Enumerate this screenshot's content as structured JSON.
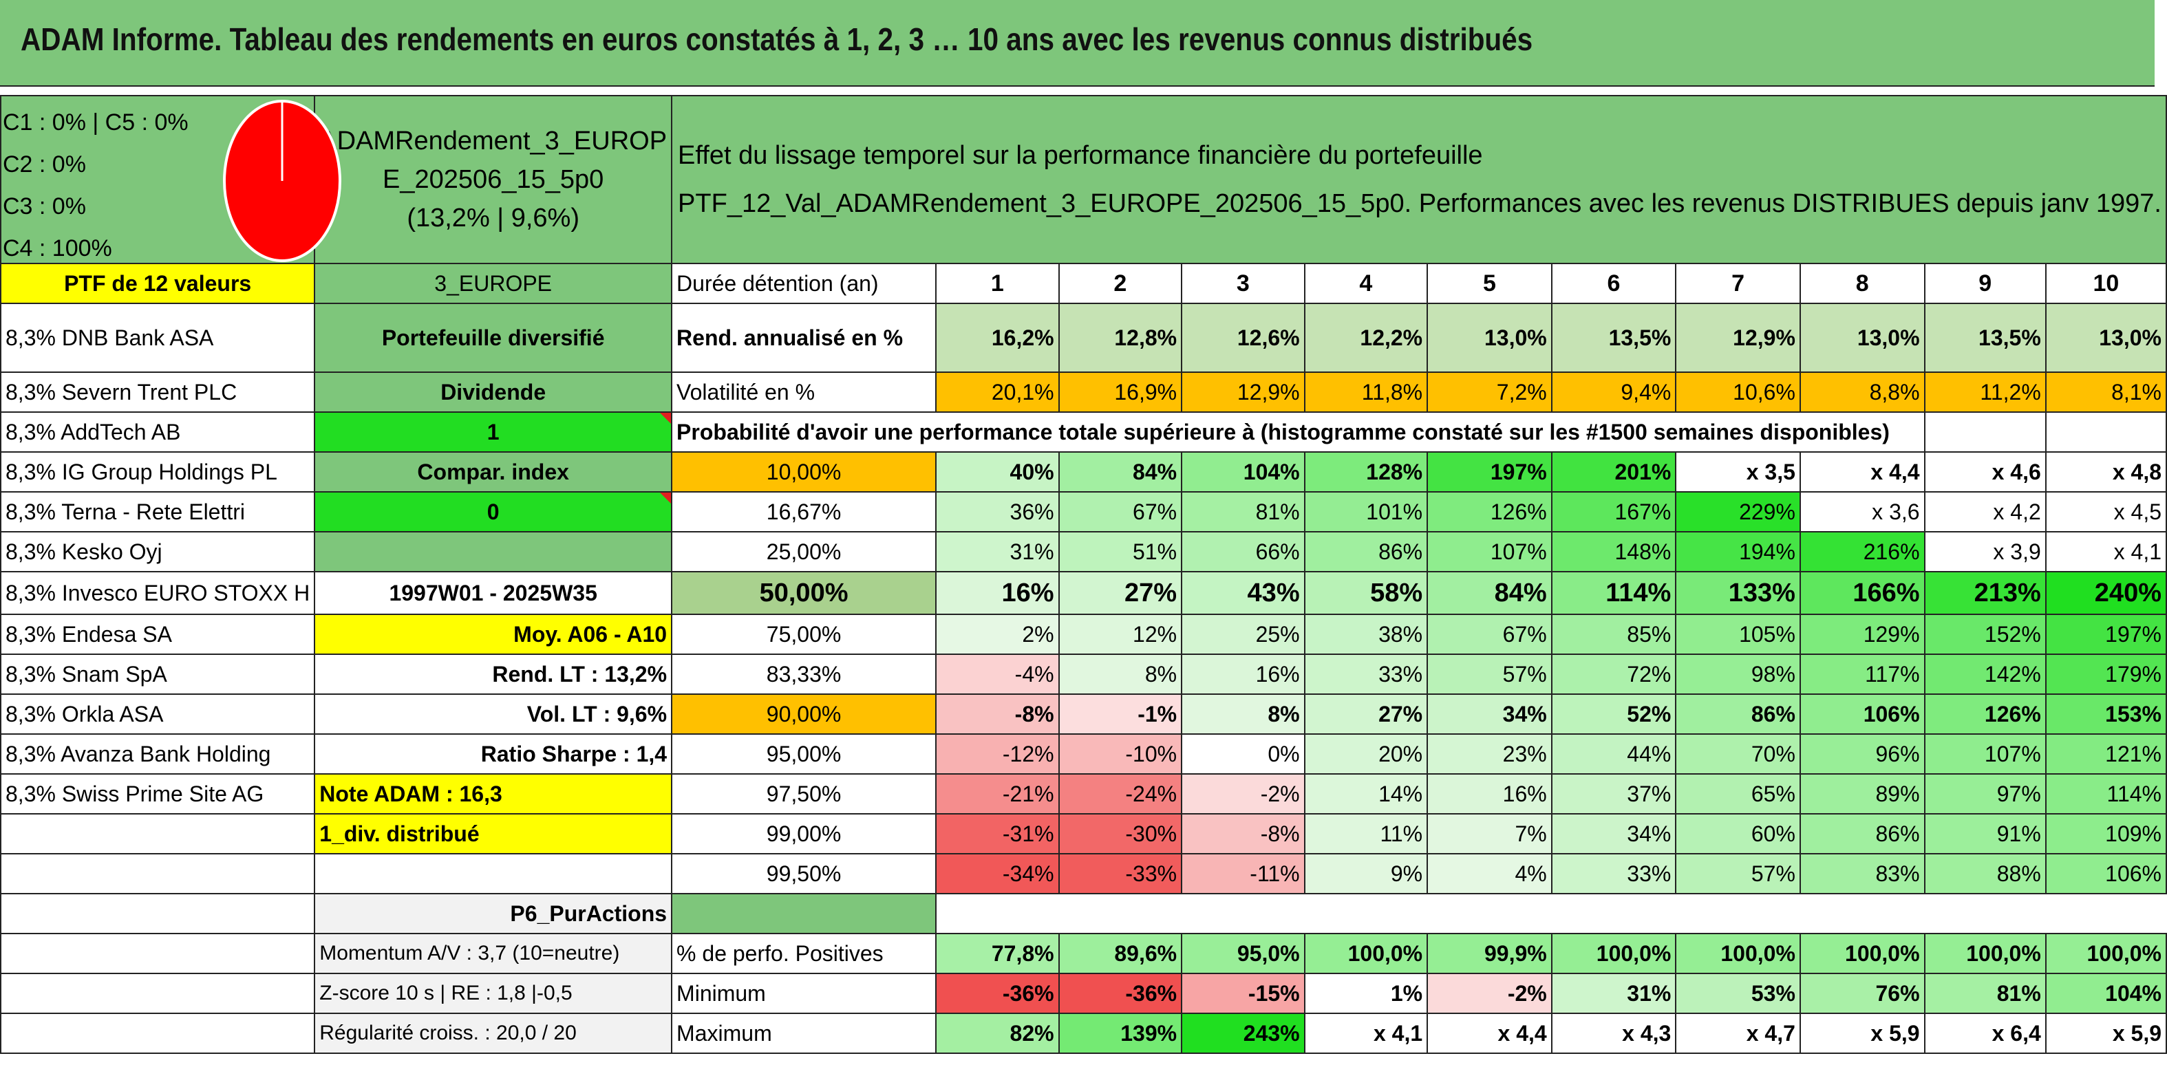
{
  "title": "ADAM Informe. Tableau des rendements en euros constatés à 1, 2, 3 … 10 ans avec les revenus connus distribués",
  "allocation": [
    "C1 : 0% | C5 : 0%",
    "C2 : 0%",
    "C3 : 0%",
    "C4 : 100%"
  ],
  "pie_color": "#ff0000",
  "portfolio_name": [
    "ADAMRendement_3_EUROP",
    "E_202506_15_5p0",
    "(13,2% | 9,6%)"
  ],
  "description": [
    "Effet du lissage temporel sur la performance financière du portefeuille",
    "PTF_12_Val_ADAMRendement_3_EUROPE_202506_15_5p0. Performances avec les revenus DISTRIBUES depuis janv 1997."
  ],
  "ptf_label": "PTF de 12 valeurs",
  "holdings": [
    "8,3% DNB Bank ASA",
    "8,3% Severn Trent PLC",
    "8,3% AddTech AB",
    "8,3% IG Group Holdings PL",
    "8,3% Terna - Rete Elettri",
    "8,3% Kesko Oyj",
    "8,3% Invesco EURO STOXX H",
    "8,3% Endesa SA",
    "8,3% Snam SpA",
    "8,3% Orkla ASA",
    "8,3% Avanza Bank Holding",
    "8,3% Swiss Prime Site AG"
  ],
  "middle": {
    "category": "3_EUROPE",
    "type": "Portefeuille diversifié",
    "dividende_label": "Dividende",
    "dividende_value": "1",
    "compar_label": "Compar. index",
    "compar_value": "0",
    "period": "1997W01 - 2025W35",
    "moy": "Moy. A06 - A10",
    "rend_lt": "Rend. LT : 13,2%",
    "vol_lt": "Vol. LT : 9,6%",
    "sharpe": "Ratio Sharpe : 1,4",
    "note": "Note ADAM : 16,3",
    "div": "1_div. distribué",
    "purActions": "P6_PurActions",
    "momentum": "Momentum A/V : 3,7 (10=neutre)",
    "zscore": "Z-score 10 s | RE : 1,8 |-0,5",
    "regularite": "Régularité croiss. : 20,0 / 20"
  },
  "table": {
    "duration_label": "Durée détention (an)",
    "years": [
      "1",
      "2",
      "3",
      "4",
      "5",
      "6",
      "7",
      "8",
      "9",
      "10"
    ],
    "rend_label": "Rend. annualisé en %",
    "rend": [
      "16,2%",
      "12,8%",
      "12,6%",
      "12,2%",
      "13,0%",
      "13,5%",
      "12,9%",
      "13,0%",
      "13,5%",
      "13,0%"
    ],
    "vol_label": "Volatilité en %",
    "vol": [
      "20,1%",
      "16,9%",
      "12,9%",
      "11,8%",
      "7,2%",
      "9,4%",
      "10,6%",
      "8,8%",
      "11,2%",
      "8,1%"
    ],
    "prob_label": "Probabilité d'avoir une performance totale supérieure à (histogramme constaté sur les #1500 semaines disponibles)",
    "prob_rows": [
      {
        "p": "10,00%",
        "v": [
          "40%",
          "84%",
          "104%",
          "128%",
          "197%",
          "201%",
          "x 3,5",
          "x 4,4",
          "x 4,6",
          "x 4,8"
        ]
      },
      {
        "p": "16,67%",
        "v": [
          "36%",
          "67%",
          "81%",
          "101%",
          "126%",
          "167%",
          "229%",
          "x 3,6",
          "x 4,2",
          "x 4,5"
        ]
      },
      {
        "p": "25,00%",
        "v": [
          "31%",
          "51%",
          "66%",
          "86%",
          "107%",
          "148%",
          "194%",
          "216%",
          "x 3,9",
          "x 4,1"
        ]
      },
      {
        "p": "50,00%",
        "v": [
          "16%",
          "27%",
          "43%",
          "58%",
          "84%",
          "114%",
          "133%",
          "166%",
          "213%",
          "240%"
        ]
      },
      {
        "p": "75,00%",
        "v": [
          "2%",
          "12%",
          "25%",
          "38%",
          "67%",
          "85%",
          "105%",
          "129%",
          "152%",
          "197%"
        ]
      },
      {
        "p": "83,33%",
        "v": [
          "-4%",
          "8%",
          "16%",
          "33%",
          "57%",
          "72%",
          "98%",
          "117%",
          "142%",
          "179%"
        ]
      },
      {
        "p": "90,00%",
        "v": [
          "-8%",
          "-1%",
          "8%",
          "27%",
          "34%",
          "52%",
          "86%",
          "106%",
          "126%",
          "153%"
        ]
      },
      {
        "p": "95,00%",
        "v": [
          "-12%",
          "-10%",
          "0%",
          "20%",
          "23%",
          "44%",
          "70%",
          "96%",
          "107%",
          "121%"
        ]
      },
      {
        "p": "97,50%",
        "v": [
          "-21%",
          "-24%",
          "-2%",
          "14%",
          "16%",
          "37%",
          "65%",
          "89%",
          "97%",
          "114%"
        ]
      },
      {
        "p": "99,00%",
        "v": [
          "-31%",
          "-30%",
          "-8%",
          "11%",
          "7%",
          "34%",
          "60%",
          "86%",
          "91%",
          "109%"
        ]
      },
      {
        "p": "99,50%",
        "v": [
          "-34%",
          "-33%",
          "-11%",
          "9%",
          "4%",
          "33%",
          "57%",
          "83%",
          "88%",
          "106%"
        ]
      }
    ],
    "pos_label": "% de perfo. Positives",
    "pos": [
      "77,8%",
      "89,6%",
      "95,0%",
      "100,0%",
      "99,9%",
      "100,0%",
      "100,0%",
      "100,0%",
      "100,0%",
      "100,0%"
    ],
    "min_label": "Minimum",
    "min": [
      "-36%",
      "-36%",
      "-15%",
      "1%",
      "-2%",
      "31%",
      "53%",
      "76%",
      "81%",
      "104%"
    ],
    "max_label": "Maximum",
    "max": [
      "82%",
      "139%",
      "243%",
      "x 4,1",
      "x 4,4",
      "x 4,3",
      "x 4,7",
      "x 5,9",
      "x 6,4",
      "x 5,9"
    ]
  },
  "colors": {
    "header_green": "#7ec67b",
    "yellow": "#ffff00",
    "orange": "#ffc000",
    "red_text": "#e02020"
  }
}
